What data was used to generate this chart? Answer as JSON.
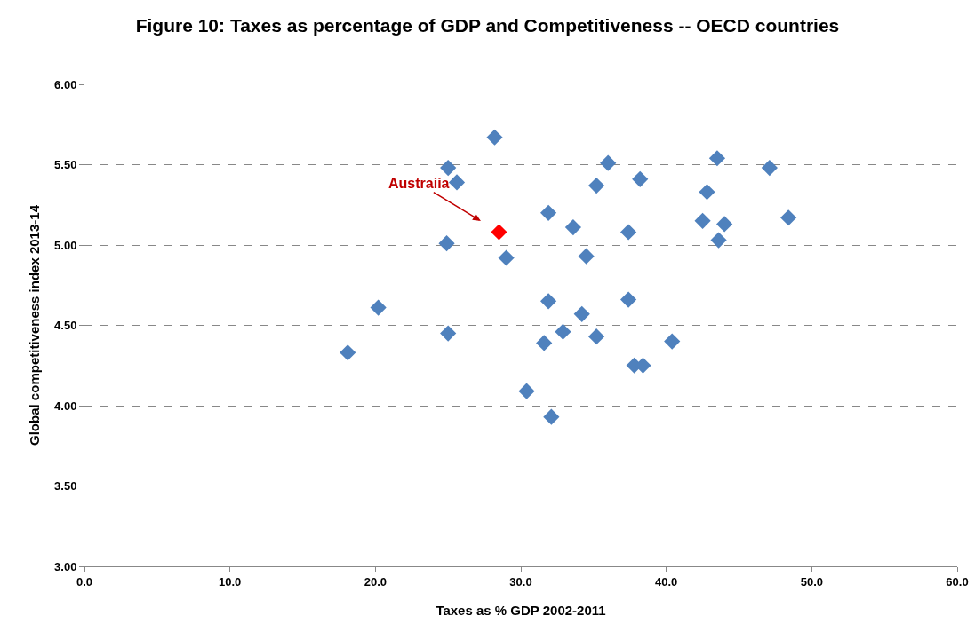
{
  "chart_data": {
    "type": "scatter",
    "title": "Figure 10: Taxes as percentage of GDP and Competitiveness -- OECD countries",
    "xlabel": "Taxes as % GDP 2002-2011",
    "ylabel": "Global competitiveness index 2013-14",
    "series": [
      {
        "color": "#4f81bd",
        "x": [
          18.1,
          20.2,
          25.0,
          24.9,
          25.0,
          25.6,
          28.2,
          29.0,
          30.4,
          31.9,
          31.9,
          31.6,
          32.1,
          32.9,
          33.6,
          34.2,
          34.5,
          35.2,
          35.2,
          36.0,
          37.4,
          37.4,
          37.8,
          38.4,
          38.2,
          40.4,
          42.5,
          42.8,
          43.5,
          43.6,
          44.0,
          47.1,
          48.4
        ],
        "values": [
          4.33,
          4.61,
          5.48,
          5.01,
          4.45,
          5.39,
          5.67,
          4.92,
          4.09,
          5.2,
          4.65,
          4.39,
          3.93,
          4.46,
          5.11,
          4.57,
          4.93,
          5.37,
          4.43,
          5.51,
          5.08,
          4.66,
          4.25,
          4.25,
          5.41,
          4.4,
          5.15,
          5.33,
          5.54,
          5.03,
          5.13,
          5.48,
          5.17
        ]
      },
      {
        "color": "#ff0000",
        "x": [
          28.5
        ],
        "values": [
          5.08
        ]
      }
    ],
    "annotations": [
      {
        "text": "Austraiia",
        "x": 28.5,
        "y": 5.08
      }
    ],
    "xlim": [
      0,
      60
    ],
    "xticks": [
      {
        "value": 0,
        "label": "0.0"
      },
      {
        "value": 10,
        "label": "10.0"
      },
      {
        "value": 20,
        "label": "20.0"
      },
      {
        "value": 30,
        "label": "30.0"
      },
      {
        "value": 40,
        "label": "40.0"
      },
      {
        "value": 50,
        "label": "50.0"
      },
      {
        "value": 60,
        "label": "60.0"
      }
    ],
    "ylim": [
      3,
      6
    ],
    "yticks": [
      {
        "value": 3,
        "label": "3.00"
      },
      {
        "value": 3.5,
        "label": "3.50"
      },
      {
        "value": 4,
        "label": "4.00"
      },
      {
        "value": 4.5,
        "label": "4.50"
      },
      {
        "value": 5,
        "label": "5.00"
      },
      {
        "value": 5.5,
        "label": "5.50"
      },
      {
        "value": 6,
        "label": "6.00"
      }
    ],
    "grid": "y",
    "marker": "diamond"
  }
}
